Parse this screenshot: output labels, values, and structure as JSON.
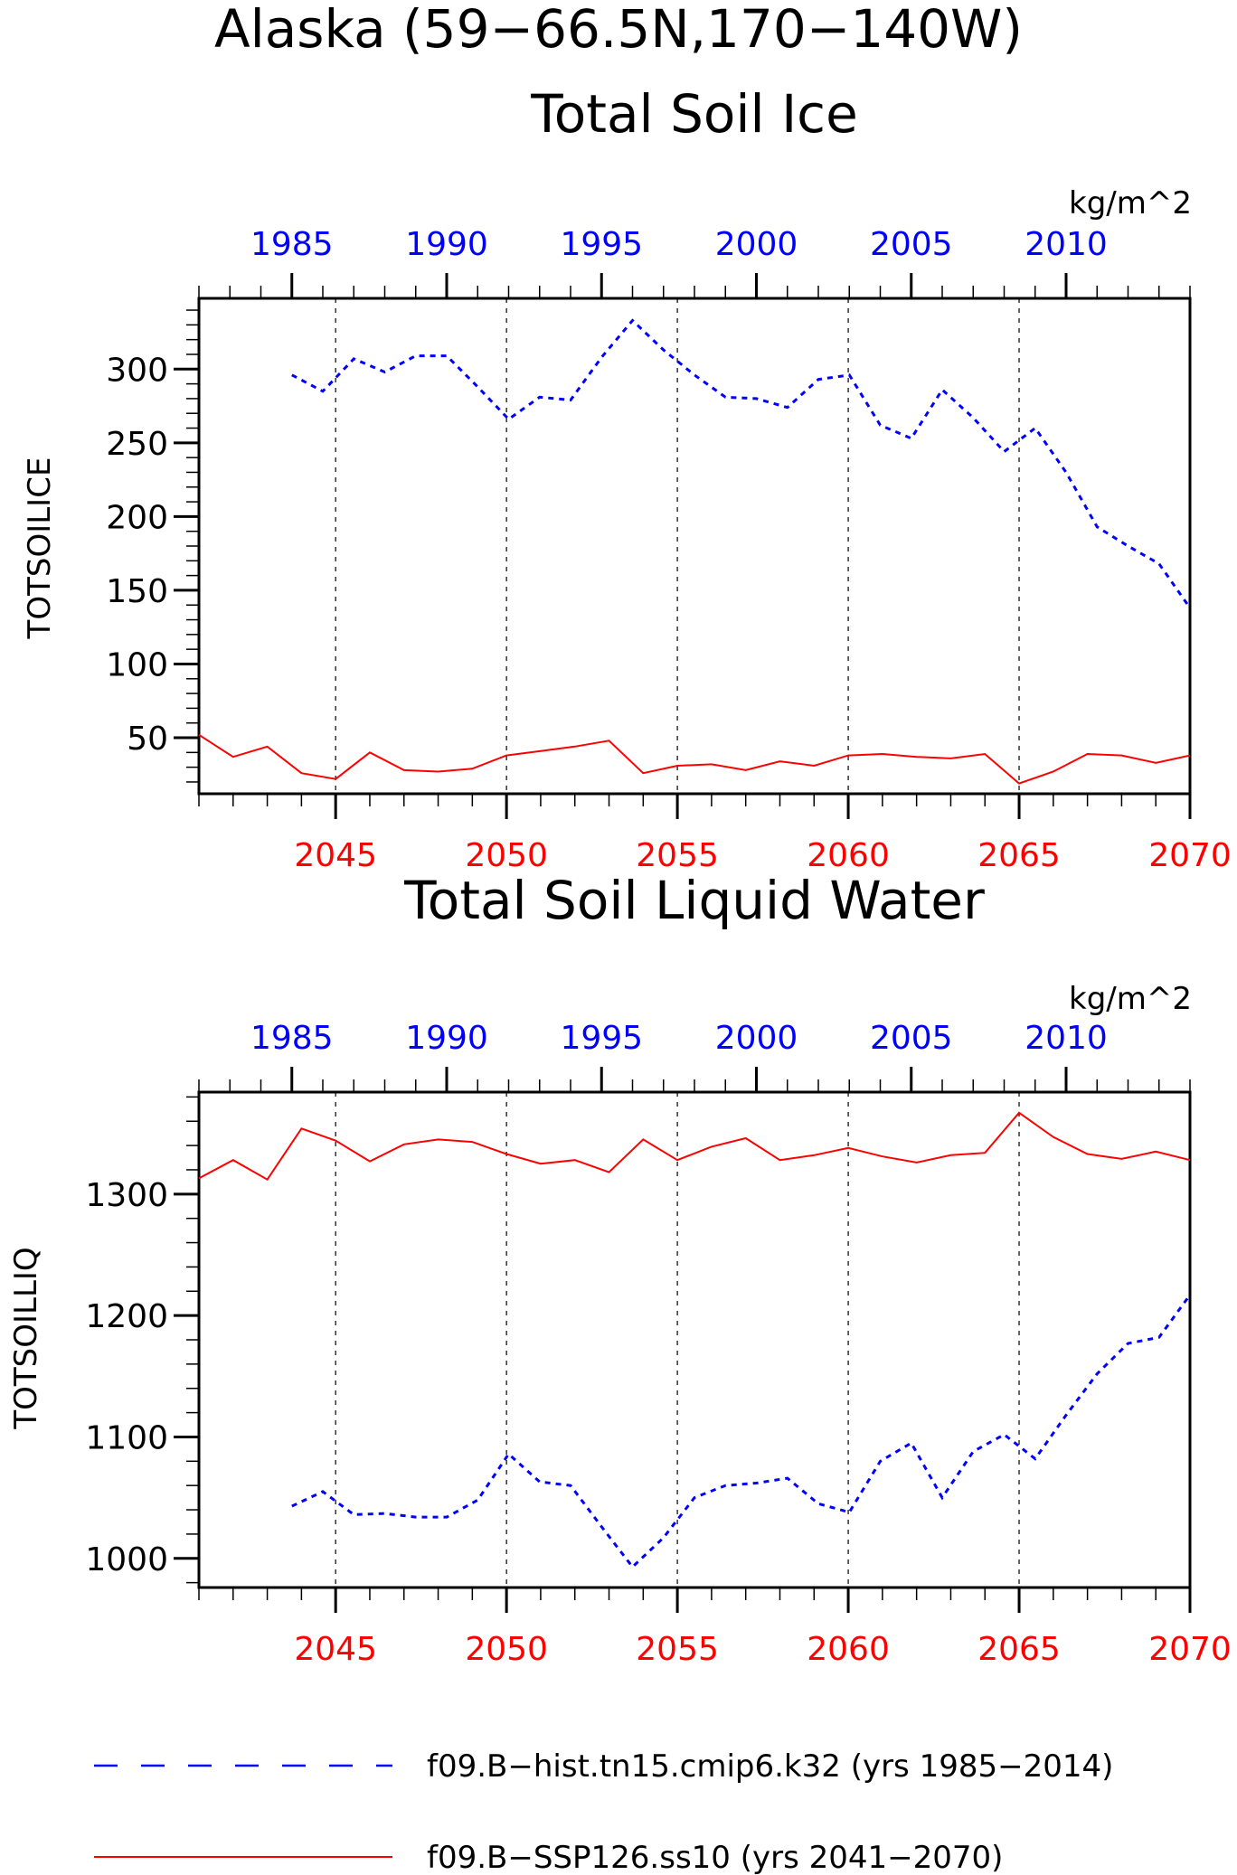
{
  "page": {
    "title_line1": "Alaska (59−66.5N,170−140W)"
  },
  "chart_data": [
    {
      "type": "line",
      "title": "Total Soil Ice",
      "ylabel": "TOTSOILICE",
      "units": "kg/m^2",
      "ylim": [
        12,
        348
      ],
      "yticks": [
        50,
        100,
        150,
        200,
        250,
        300
      ],
      "top_axis": {
        "color": "#0000ff",
        "range": [
          1982,
          2014
        ],
        "ticks": [
          1985,
          1990,
          1995,
          2000,
          2005,
          2010
        ]
      },
      "bottom_axis": {
        "color": "#ff0000",
        "range": [
          2041,
          2070
        ],
        "ticks": [
          2045,
          2050,
          2055,
          2060,
          2065,
          2070
        ]
      },
      "series": [
        {
          "name": "f09.B−hist.tn15.cmip6.k32 (yrs 1985−2014)",
          "color": "#0000ff",
          "style": "dashed",
          "axis": "top",
          "x": [
            1985,
            1986,
            1987,
            1988,
            1989,
            1990,
            1991,
            1992,
            1993,
            1994,
            1995,
            1996,
            1997,
            1998,
            1999,
            2000,
            2001,
            2002,
            2003,
            2004,
            2005,
            2006,
            2007,
            2008,
            2009,
            2010,
            2011,
            2012,
            2013,
            2014
          ],
          "values": [
            296,
            285,
            307,
            298,
            309,
            309,
            288,
            266,
            281,
            279,
            308,
            333,
            313,
            296,
            281,
            280,
            274,
            293,
            296,
            262,
            253,
            286,
            267,
            244,
            260,
            230,
            193,
            180,
            168,
            138
          ]
        },
        {
          "name": "f09.B−SSP126.ss10 (yrs 2041−2070)",
          "color": "#ff0000",
          "style": "solid",
          "axis": "bottom",
          "x": [
            2041,
            2042,
            2043,
            2044,
            2045,
            2046,
            2047,
            2048,
            2049,
            2050,
            2051,
            2052,
            2053,
            2054,
            2055,
            2056,
            2057,
            2058,
            2059,
            2060,
            2061,
            2062,
            2063,
            2064,
            2065,
            2066,
            2067,
            2068,
            2069,
            2070
          ],
          "values": [
            52,
            37,
            44,
            26,
            22,
            40,
            28,
            27,
            29,
            38,
            41,
            44,
            48,
            26,
            31,
            32,
            28,
            34,
            31,
            38,
            39,
            37,
            36,
            39,
            19,
            27,
            39,
            38,
            33,
            38
          ]
        }
      ]
    },
    {
      "type": "line",
      "title": "Total Soil Liquid Water",
      "ylabel": "TOTSOILLIQ",
      "units": "kg/m^2",
      "ylim": [
        976,
        1384
      ],
      "yticks": [
        1000,
        1100,
        1200,
        1300
      ],
      "top_axis": {
        "color": "#0000ff",
        "range": [
          1982,
          2014
        ],
        "ticks": [
          1985,
          1990,
          1995,
          2000,
          2005,
          2010
        ]
      },
      "bottom_axis": {
        "color": "#ff0000",
        "range": [
          2041,
          2070
        ],
        "ticks": [
          2045,
          2050,
          2055,
          2060,
          2065,
          2070
        ]
      },
      "series": [
        {
          "name": "f09.B−hist.tn15.cmip6.k32 (yrs 1985−2014)",
          "color": "#0000ff",
          "style": "dashed",
          "axis": "top",
          "x": [
            1985,
            1986,
            1987,
            1988,
            1989,
            1990,
            1991,
            1992,
            1993,
            1994,
            1995,
            1996,
            1997,
            1998,
            1999,
            2000,
            2001,
            2002,
            2003,
            2004,
            2005,
            2006,
            2007,
            2008,
            2009,
            2010,
            2011,
            2012,
            2013,
            2014
          ],
          "values": [
            1043,
            1055,
            1036,
            1037,
            1034,
            1034,
            1048,
            1086,
            1063,
            1060,
            1026,
            993,
            1017,
            1050,
            1060,
            1062,
            1066,
            1045,
            1038,
            1080,
            1095,
            1050,
            1088,
            1102,
            1082,
            1118,
            1152,
            1177,
            1182,
            1217
          ]
        },
        {
          "name": "f09.B−SSP126.ss10 (yrs 2041−2070)",
          "color": "#ff0000",
          "style": "solid",
          "axis": "bottom",
          "x": [
            2041,
            2042,
            2043,
            2044,
            2045,
            2046,
            2047,
            2048,
            2049,
            2050,
            2051,
            2052,
            2053,
            2054,
            2055,
            2056,
            2057,
            2058,
            2059,
            2060,
            2061,
            2062,
            2063,
            2064,
            2065,
            2066,
            2067,
            2068,
            2069,
            2070
          ],
          "values": [
            1313,
            1328,
            1312,
            1354,
            1344,
            1327,
            1341,
            1345,
            1343,
            1333,
            1325,
            1328,
            1318,
            1345,
            1328,
            1339,
            1346,
            1328,
            1332,
            1338,
            1331,
            1326,
            1332,
            1334,
            1367,
            1347,
            1333,
            1329,
            1335,
            1328
          ]
        }
      ]
    }
  ],
  "legend": {
    "placement": "bottom",
    "items": [
      {
        "label": "f09.B−hist.tn15.cmip6.k32 (yrs 1985−2014)",
        "color": "#0000ff",
        "style": "dashed"
      },
      {
        "label": "f09.B−SSP126.ss10 (yrs 2041−2070)",
        "color": "#ff0000",
        "style": "solid"
      }
    ]
  }
}
